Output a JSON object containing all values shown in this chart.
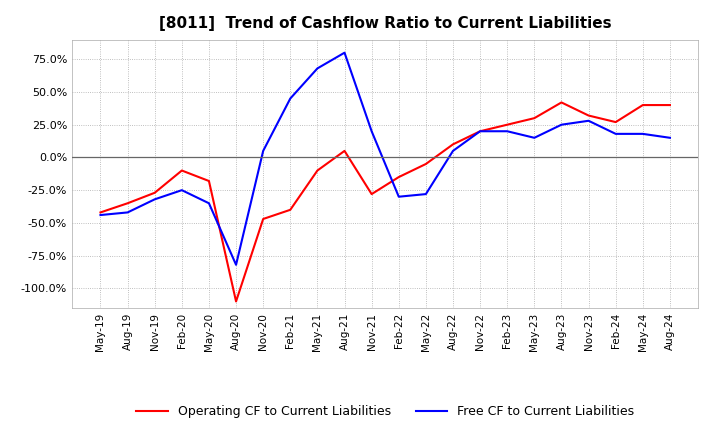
{
  "title": "[8011]  Trend of Cashflow Ratio to Current Liabilities",
  "x_labels": [
    "May-19",
    "Aug-19",
    "Nov-19",
    "Feb-20",
    "May-20",
    "Aug-20",
    "Nov-20",
    "Feb-21",
    "May-21",
    "Aug-21",
    "Nov-21",
    "Feb-22",
    "May-22",
    "Aug-22",
    "Nov-22",
    "Feb-23",
    "May-23",
    "Aug-23",
    "Nov-23",
    "Feb-24",
    "May-24",
    "Aug-24"
  ],
  "operating_cf": [
    -42,
    -35,
    -27,
    -10,
    -18,
    -110,
    -47,
    -40,
    -10,
    5,
    -28,
    -15,
    -5,
    10,
    20,
    25,
    30,
    42,
    32,
    27,
    40,
    40
  ],
  "free_cf": [
    -44,
    -42,
    -32,
    -25,
    -35,
    -82,
    5,
    45,
    68,
    80,
    20,
    -30,
    -28,
    5,
    20,
    20,
    15,
    25,
    28,
    18,
    18,
    15
  ],
  "ylim": [
    -115,
    90
  ],
  "yticks": [
    75.0,
    50.0,
    25.0,
    0.0,
    -25.0,
    -50.0,
    -75.0,
    -100.0
  ],
  "operating_color": "#FF0000",
  "free_color": "#0000FF",
  "grid_color": "#AAAAAA",
  "background_color": "#FFFFFF",
  "legend_operating": "Operating CF to Current Liabilities",
  "legend_free": "Free CF to Current Liabilities"
}
